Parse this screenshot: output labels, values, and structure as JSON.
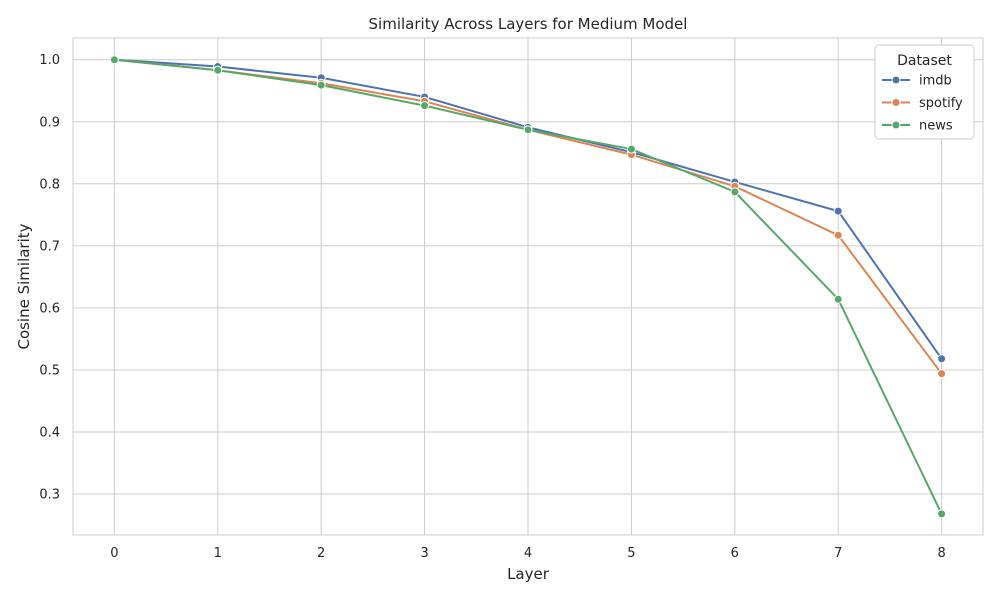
{
  "chart_data": {
    "type": "line",
    "title": "Similarity Across Layers for Medium Model",
    "xlabel": "Layer",
    "ylabel": "Cosine Similarity",
    "x": [
      0,
      1,
      2,
      3,
      4,
      5,
      6,
      7,
      8
    ],
    "xlim": [
      -0.4,
      8.4
    ],
    "ylim": [
      0.234,
      1.035
    ],
    "yticks": [
      0.3,
      0.4,
      0.5,
      0.6,
      0.7,
      0.8,
      0.9,
      1.0
    ],
    "ytick_labels": [
      "0.3",
      "0.4",
      "0.5",
      "0.6",
      "0.7",
      "0.8",
      "0.9",
      "1.0"
    ],
    "xtick_labels": [
      "0",
      "1",
      "2",
      "3",
      "4",
      "5",
      "6",
      "7",
      "8"
    ],
    "grid": true,
    "legend": {
      "title": "Dataset",
      "placement": "top-right"
    },
    "series": [
      {
        "name": "imdb",
        "color": "#4c72b0",
        "values": [
          1.0,
          0.989,
          0.971,
          0.94,
          0.891,
          0.851,
          0.803,
          0.756,
          0.518
        ]
      },
      {
        "name": "spotify",
        "color": "#dd8452",
        "values": [
          1.0,
          0.983,
          0.962,
          0.933,
          0.887,
          0.847,
          0.796,
          0.717,
          0.494
        ]
      },
      {
        "name": "news",
        "color": "#55a868",
        "values": [
          1.0,
          0.983,
          0.959,
          0.926,
          0.887,
          0.856,
          0.787,
          0.614,
          0.268
        ]
      }
    ]
  }
}
